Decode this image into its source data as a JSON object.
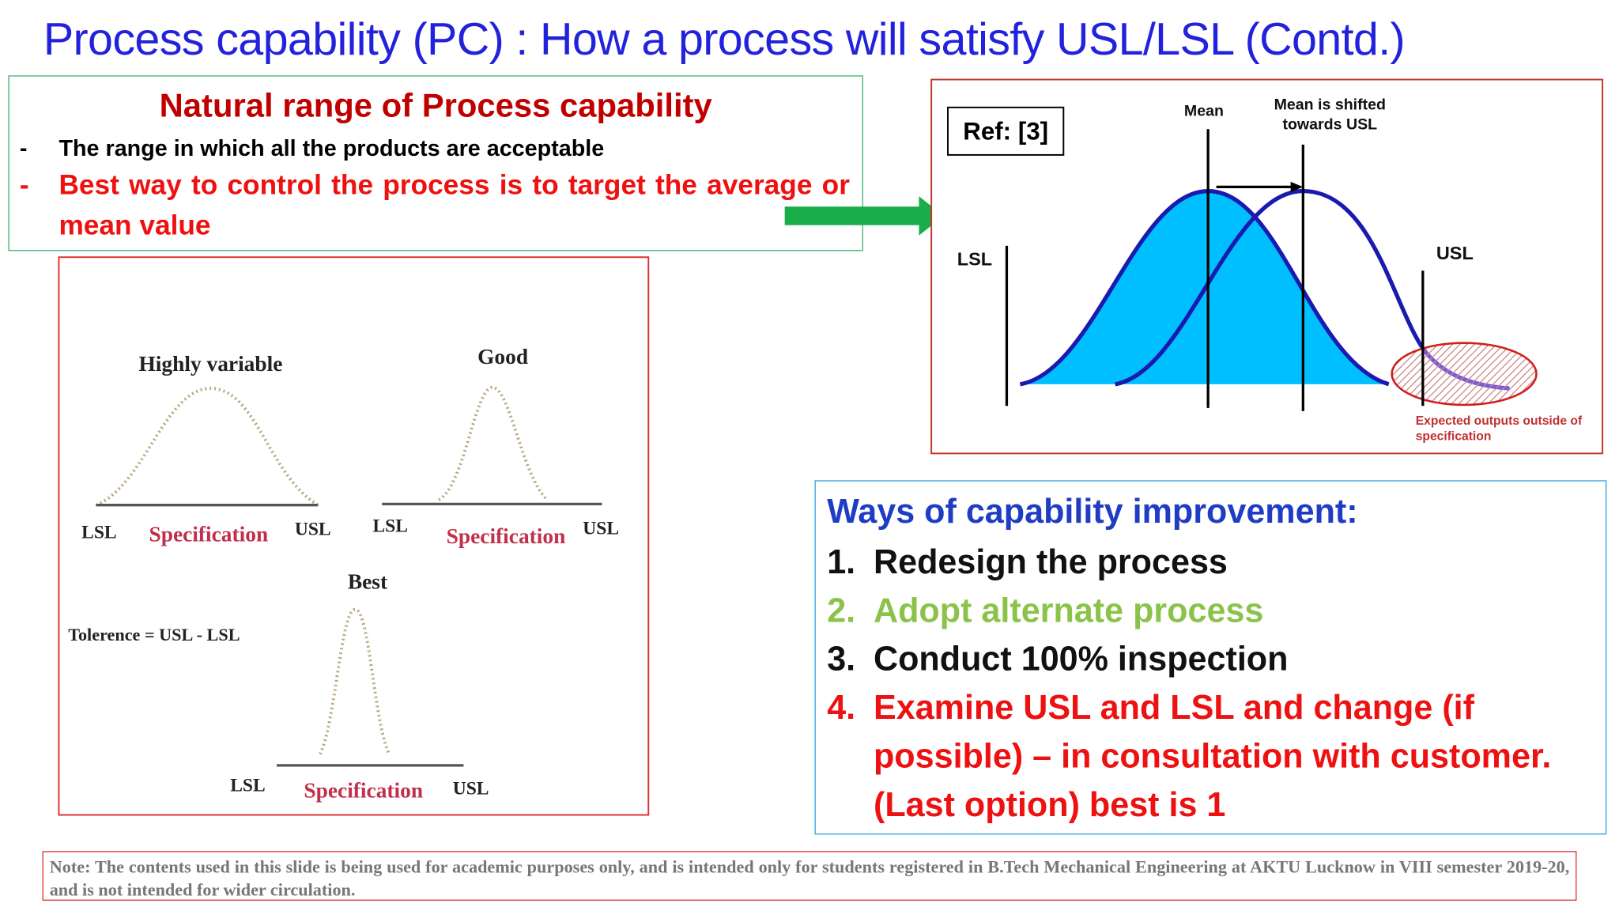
{
  "title": "Process capability (PC) : How a process will satisfy USL/LSL (Contd.)",
  "natural_range": {
    "heading": "Natural range of Process capability",
    "items": [
      {
        "marker": "-",
        "text": "The range in which all the products are acceptable"
      },
      {
        "marker": "-",
        "text": "Best way to control the process is to target the average or mean value"
      }
    ]
  },
  "left_figure": {
    "panels": [
      {
        "label": "Highly variable",
        "lsl": "LSL",
        "spec": "Specification",
        "usl": "USL"
      },
      {
        "label": "Good",
        "lsl": "LSL",
        "spec": "Specification",
        "usl": "USL"
      },
      {
        "label": "Best",
        "lsl": "LSL",
        "spec": "Specification",
        "usl": "USL"
      }
    ],
    "tolerance": "Tolerence = USL - LSL"
  },
  "right_figure": {
    "ref": "Ref: [3]",
    "mean": "Mean",
    "shifted": [
      "Mean is shifted",
      "towards USL"
    ],
    "lsl": "LSL",
    "usl": "USL",
    "outside": [
      "Expected outputs outside of",
      "specification"
    ]
  },
  "improvement": {
    "heading": "Ways of capability improvement:",
    "items": [
      {
        "number": "1.",
        "lines": [
          "Redesign the process"
        ]
      },
      {
        "number": "2.",
        "lines": [
          "Adopt alternate process"
        ]
      },
      {
        "number": "3.",
        "lines": [
          "Conduct 100% inspection"
        ]
      },
      {
        "number": "4.",
        "lines": [
          "Examine USL and LSL and change (if",
          "possible) – in consultation with customer.",
          "(Last option) best is  1"
        ]
      }
    ]
  },
  "note": "Note: The contents used in this slide is being used for academic purposes only, and is intended only for students registered in  B.Tech Mechanical Engineering at AKTU Lucknow in VIII semester 2019-20, and is not intended for wider circulation."
}
